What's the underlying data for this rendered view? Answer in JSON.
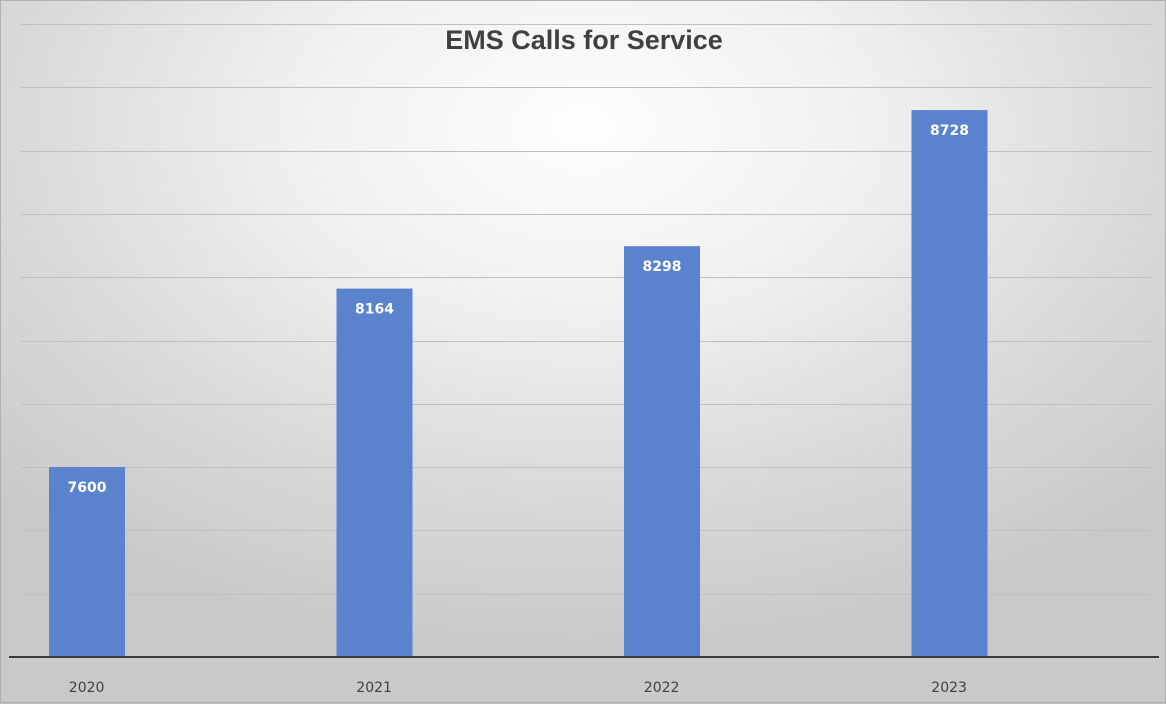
{
  "chart_data": {
    "type": "bar",
    "title": "EMS Calls for Service",
    "categories": [
      "2020",
      "2021",
      "2022",
      "2023"
    ],
    "values": [
      7600,
      8164,
      8298,
      8728
    ],
    "data_labels": [
      "7600",
      "8164",
      "8298",
      "8728"
    ],
    "xlabel": "",
    "ylabel": "",
    "ylim": [
      7000,
      9000
    ],
    "ytick_step": 200,
    "y_tick_labels_visible": false,
    "grid": true,
    "legend": "none",
    "bar_color": "#5b82cc"
  }
}
